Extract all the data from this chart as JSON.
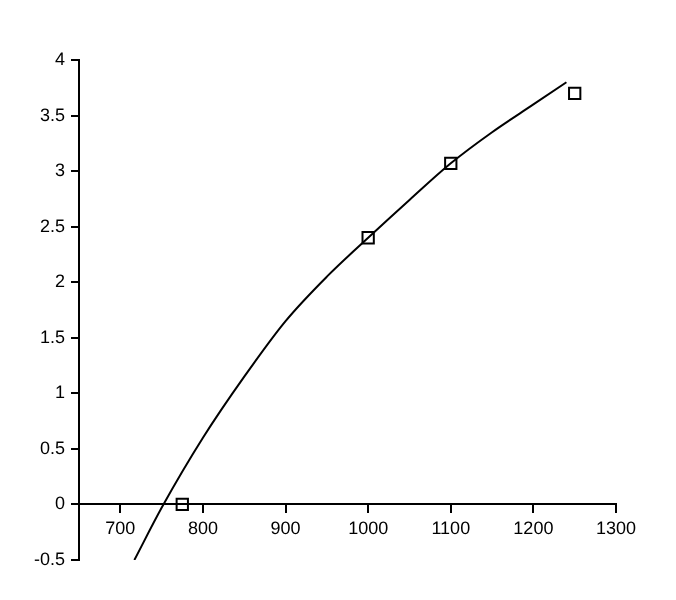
{
  "chart_data": {
    "type": "scatter",
    "xlim": [
      650,
      1300
    ],
    "ylim": [
      -0.5,
      4
    ],
    "xticks": [
      700,
      800,
      900,
      1000,
      1100,
      1200,
      1300
    ],
    "yticks": [
      -0.5,
      0,
      0.5,
      1,
      1.5,
      2,
      2.5,
      3,
      3.5,
      4
    ],
    "grid": false,
    "legend": false,
    "series": [
      {
        "color": "#000000",
        "marker": "square",
        "x": [
          775,
          1000,
          1100,
          1250
        ],
        "values": [
          0,
          2.4,
          3.07,
          3.7
        ]
      },
      {
        "type": "line",
        "color": "#000000",
        "marker": "none",
        "line_style": "solid",
        "x": [
          717,
          750,
          800,
          850,
          900,
          950,
          1000,
          1050,
          1100,
          1150,
          1200,
          1240
        ],
        "values": [
          -0.5,
          -0.03,
          0.6,
          1.15,
          1.65,
          2.05,
          2.4,
          2.74,
          3.07,
          3.35,
          3.6,
          3.8
        ]
      }
    ]
  }
}
